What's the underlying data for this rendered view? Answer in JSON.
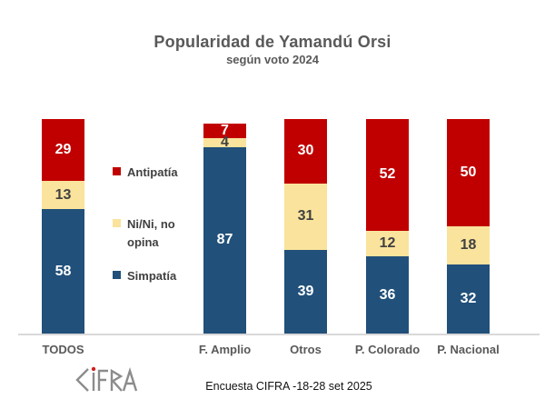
{
  "header": {
    "title": "Popularidad de Yamandú Orsi",
    "subtitle": "según voto 2024"
  },
  "footer": {
    "note": "Encuesta CIFRA -18-28 set 2025",
    "logo_name": "CIFRA"
  },
  "colors": {
    "antipatia": "#c00000",
    "nini": "#fae39c",
    "simpatia": "#21507a",
    "axis_line": "#d9d9d9",
    "heading_text": "#595959",
    "value_on_dark": "#ffffff",
    "value_on_light": "#404040",
    "logo_gray": "#8c8c8c",
    "logo_dot_red": "#d02020"
  },
  "legend": [
    {
      "label": "Antipatía",
      "color": "#c00000"
    },
    {
      "label": "Ni/Ni, no opina",
      "color": "#fae39c"
    },
    {
      "label": "Simpatía",
      "color": "#21507a"
    }
  ],
  "chart_data": {
    "type": "bar",
    "stacked": true,
    "title": "Popularidad de Yamandú Orsi",
    "subtitle": "según voto 2024",
    "categories": [
      "TODOS",
      "F. Amplio",
      "Otros",
      "P. Colorado",
      "P. Nacional"
    ],
    "series": [
      {
        "name": "Simpatía",
        "color": "#21507a",
        "label_color": "#ffffff",
        "values": [
          58,
          87,
          39,
          36,
          32
        ]
      },
      {
        "name": "Ni/Ni, no opina",
        "color": "#fae39c",
        "label_color": "#404040",
        "values": [
          13,
          4,
          31,
          12,
          18
        ]
      },
      {
        "name": "Antipatía",
        "color": "#c00000",
        "label_color": "#ffffff",
        "values": [
          29,
          7,
          30,
          52,
          50
        ]
      }
    ],
    "unit": "%",
    "ylim": [
      0,
      100
    ],
    "grid": false,
    "x_axis_line": true,
    "legend_position": "middle-left",
    "data_labels": "center"
  }
}
